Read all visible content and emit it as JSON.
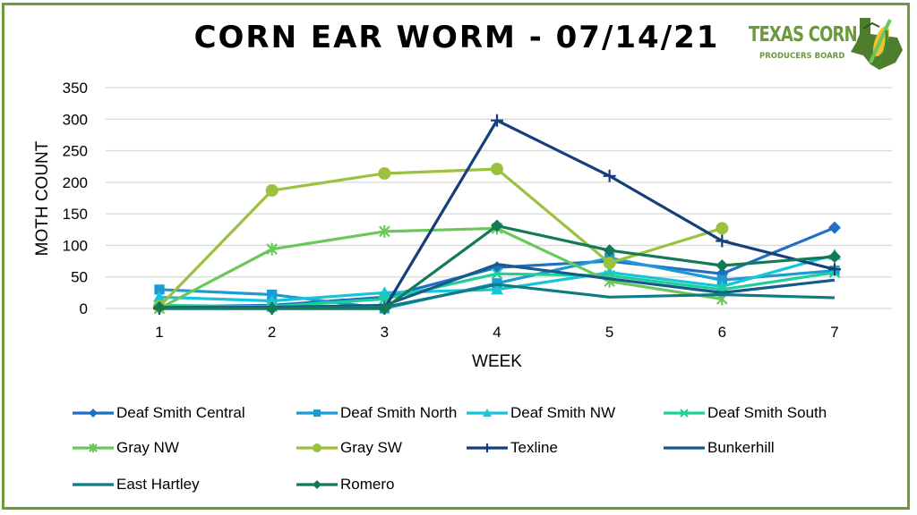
{
  "logo": {
    "line1": "TEXAS CORN",
    "line2": "PRODUCERS BOARD",
    "green": "#6a9a3a"
  },
  "chart_data": {
    "type": "line",
    "title": "CORN EAR WORM - 07/14/21",
    "xlabel": "WEEK",
    "ylabel": "MOTH COUNT",
    "x": [
      1,
      2,
      3,
      4,
      5,
      6,
      7
    ],
    "x_tick_labels": [
      "1",
      "2",
      "3",
      "4",
      "5",
      "6",
      "7"
    ],
    "ylim": [
      0,
      350
    ],
    "y_ticks": [
      0,
      50,
      100,
      150,
      200,
      250,
      300,
      350
    ],
    "y_tick_labels": [
      "0",
      "50",
      "100",
      "150",
      "200",
      "250",
      "300",
      "350"
    ],
    "grid": "horizontal",
    "legend_position": "bottom",
    "series": [
      {
        "name": "Deaf Smith Central",
        "color": "#1f6fc5",
        "marker": "diamond",
        "values": [
          3,
          5,
          18,
          65,
          75,
          55,
          128
        ]
      },
      {
        "name": "Deaf Smith North",
        "color": "#1b9ad6",
        "marker": "square",
        "values": [
          30,
          22,
          0,
          40,
          80,
          45,
          60
        ]
      },
      {
        "name": "Deaf Smith NW",
        "color": "#17c4d8",
        "marker": "triangle",
        "values": [
          18,
          12,
          25,
          30,
          57,
          35,
          85
        ]
      },
      {
        "name": "Deaf Smith South",
        "color": "#1fcf9a",
        "marker": "x",
        "values": [
          5,
          3,
          15,
          55,
          52,
          30,
          57
        ]
      },
      {
        "name": "Gray NW",
        "color": "#6cc75a",
        "marker": "star",
        "values": [
          0,
          94,
          122,
          127,
          43,
          15,
          null
        ]
      },
      {
        "name": "Gray SW",
        "color": "#9bc23f",
        "marker": "circle",
        "values": [
          3,
          187,
          214,
          221,
          72,
          127,
          null
        ]
      },
      {
        "name": "Texline",
        "color": "#143f7a",
        "marker": "plus",
        "values": [
          0,
          0,
          0,
          298,
          210,
          107,
          62
        ]
      },
      {
        "name": "Bunkerhill",
        "color": "#155b8a",
        "marker": "none",
        "values": [
          2,
          2,
          5,
          70,
          47,
          25,
          45
        ]
      },
      {
        "name": "East Hartley",
        "color": "#0f7b82",
        "marker": "none",
        "values": [
          0,
          0,
          2,
          38,
          18,
          22,
          17
        ]
      },
      {
        "name": "Romero",
        "color": "#147a55",
        "marker": "diamond",
        "values": [
          2,
          0,
          0,
          131,
          92,
          68,
          82
        ]
      }
    ]
  }
}
